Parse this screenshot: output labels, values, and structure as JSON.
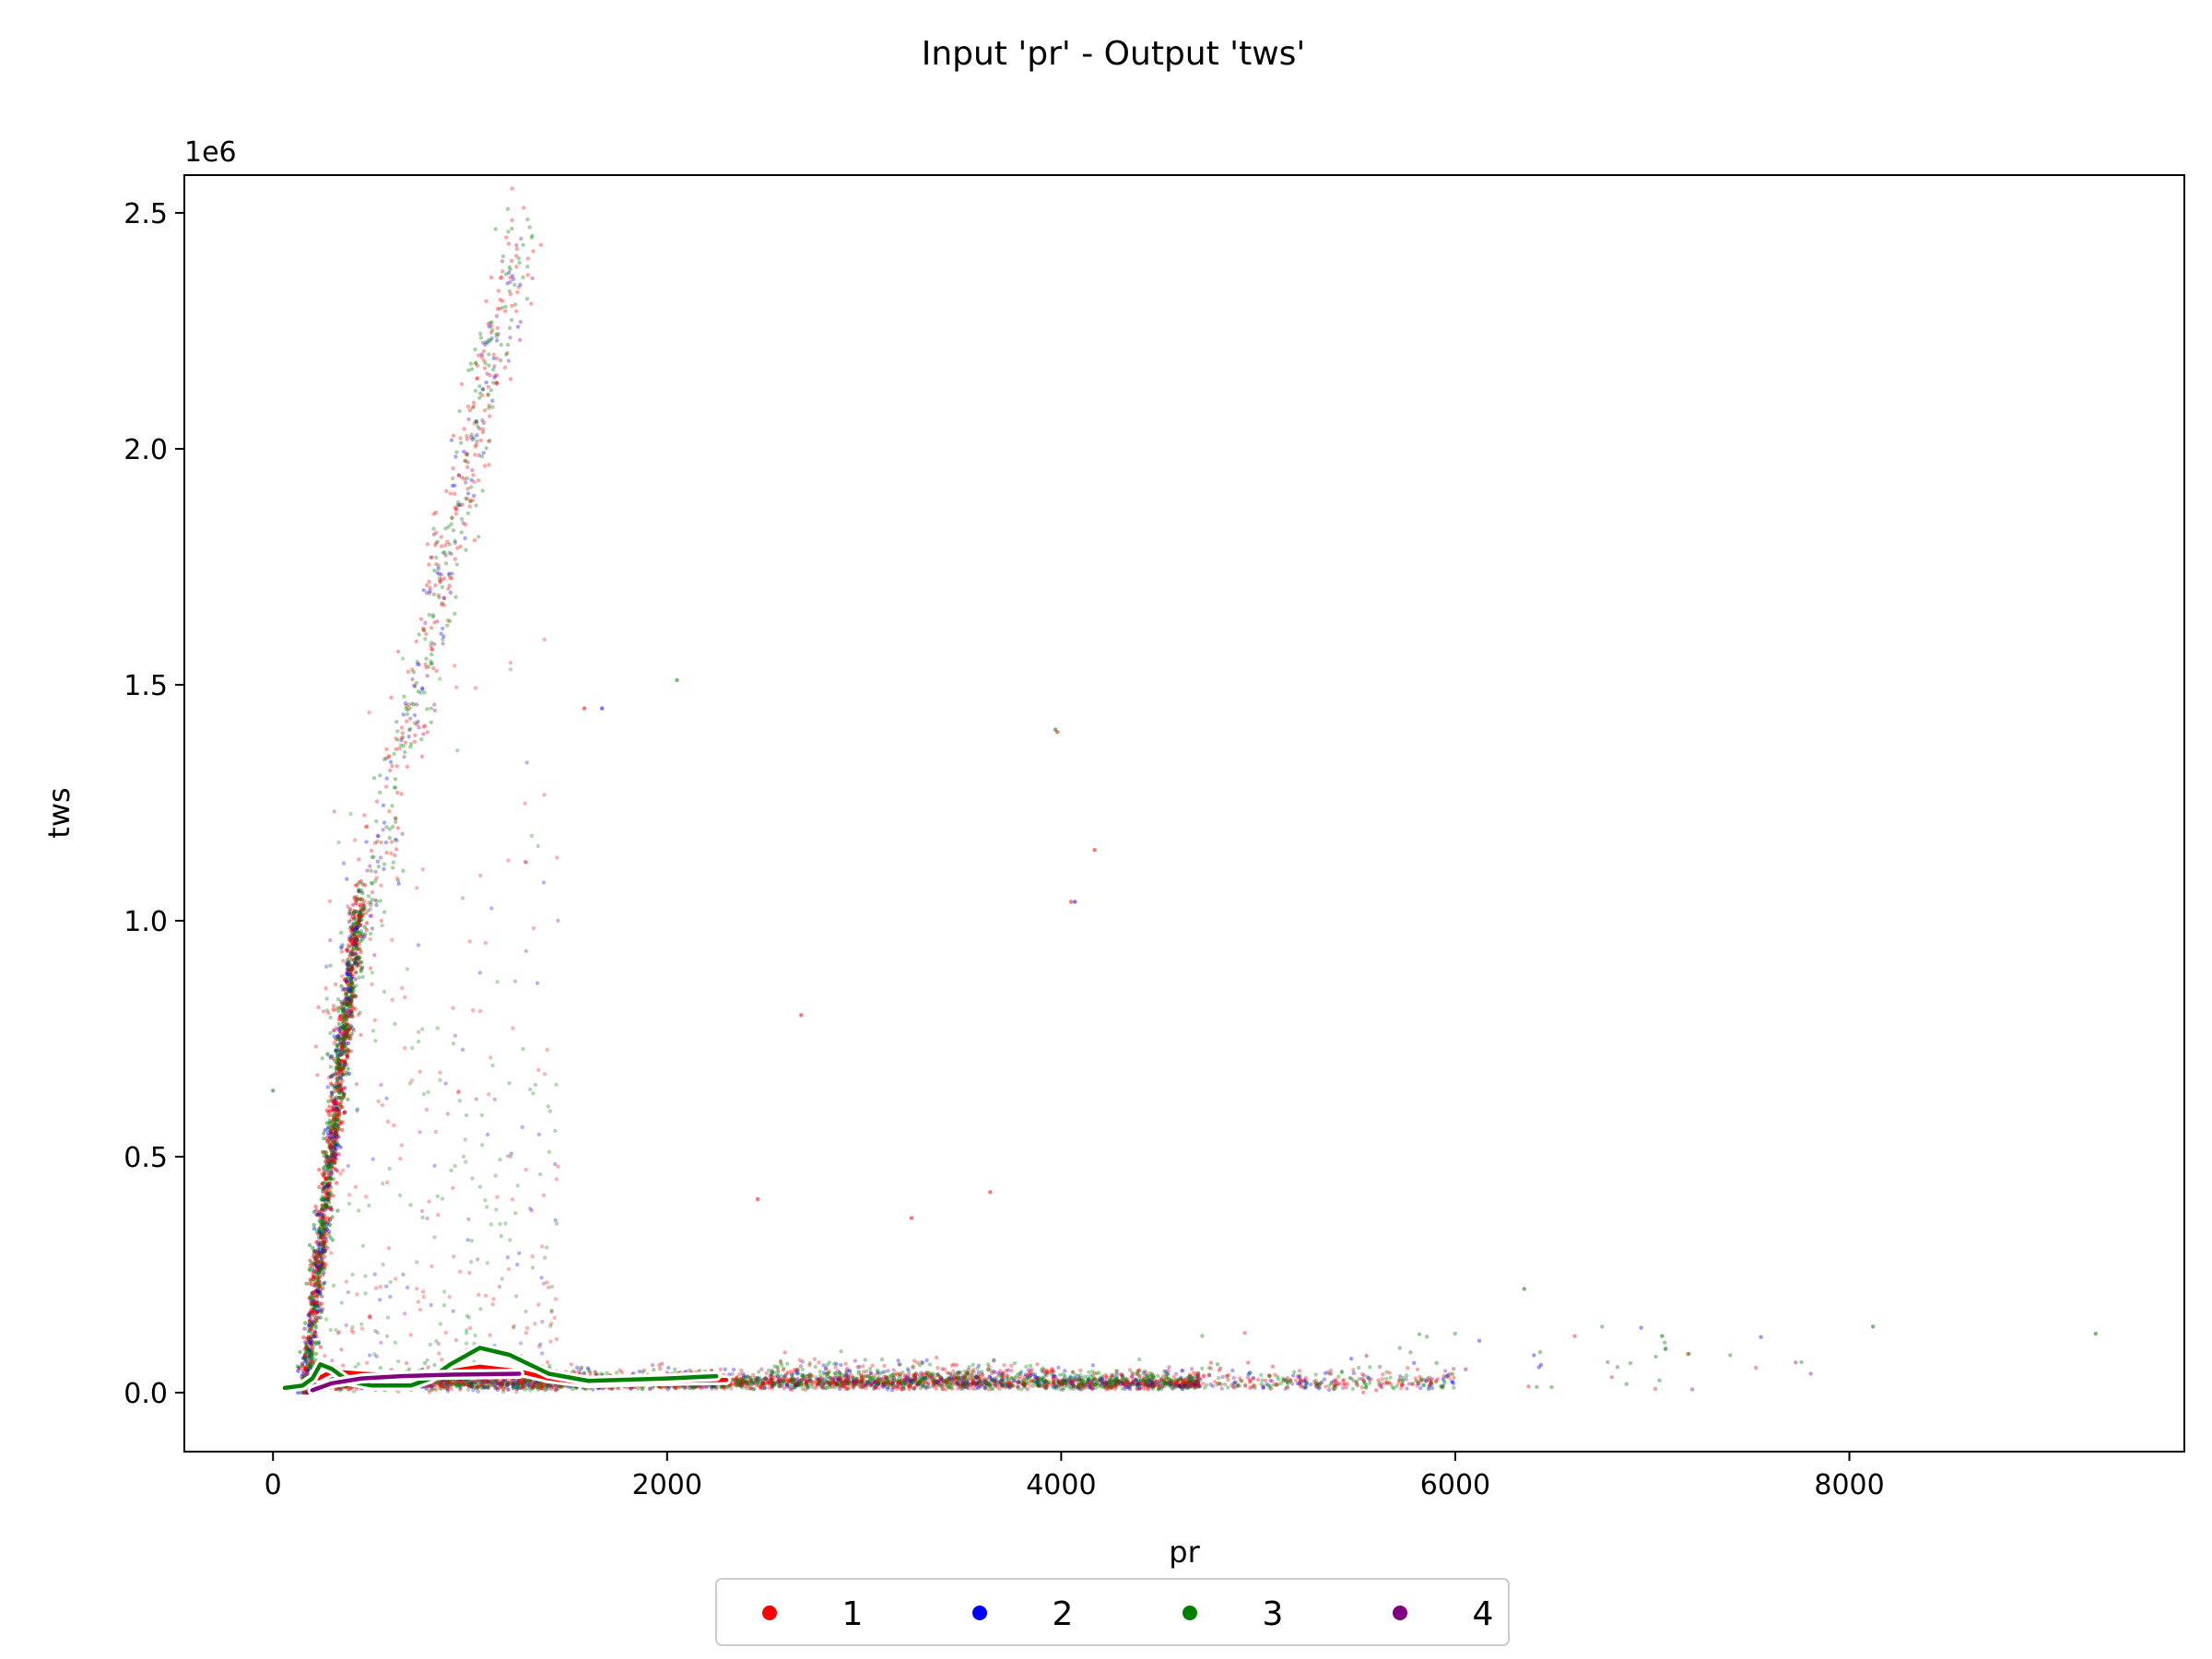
{
  "chart_data": {
    "type": "scatter",
    "title": "Input 'pr' - Output 'tws'",
    "xlabel": "pr",
    "ylabel": "tws",
    "y_offset_label": "1e6",
    "xlim": [
      -450,
      9700
    ],
    "ylim": [
      -125000,
      2580000
    ],
    "x_ticks": [
      0,
      2000,
      4000,
      6000,
      8000
    ],
    "x_tick_labels": [
      "0",
      "2000",
      "4000",
      "6000",
      "8000"
    ],
    "y_ticks": [
      0,
      500000,
      1000000,
      1500000,
      2000000,
      2500000
    ],
    "y_tick_labels": [
      "0.0",
      "0.5",
      "1.0",
      "1.5",
      "2.0",
      "2.5"
    ],
    "grid": false,
    "legend_position": "bottom-center",
    "series": [
      {
        "name": "1",
        "color": "#ff0000",
        "outliers": [
          [
            1580,
            1450000
          ],
          [
            3980,
            1400000
          ],
          [
            4050,
            1040000
          ],
          [
            4170,
            1150000
          ],
          [
            2680,
            800000
          ],
          [
            3640,
            425000
          ],
          [
            2460,
            410000
          ],
          [
            3240,
            370000
          ]
        ],
        "contour": [
          [
            230,
            30000
          ],
          [
            300,
            45000
          ],
          [
            450,
            40000
          ],
          [
            700,
            35000
          ],
          [
            900,
            45000
          ],
          [
            1050,
            55000
          ],
          [
            1250,
            45000
          ],
          [
            1400,
            30000
          ],
          [
            1600,
            20000
          ],
          [
            1900,
            24000
          ],
          [
            2300,
            27000
          ]
        ]
      },
      {
        "name": "2",
        "color": "#0000ff",
        "outliers": [
          [
            1670,
            1450000
          ],
          [
            4070,
            1040000
          ]
        ],
        "contour": []
      },
      {
        "name": "3",
        "color": "#008000",
        "outliers": [
          [
            2050,
            1510000
          ],
          [
            3970,
            1405000
          ],
          [
            6350,
            220000
          ],
          [
            7050,
            120000
          ],
          [
            8120,
            140000
          ],
          [
            9250,
            125000
          ],
          [
            0,
            640000
          ]
        ],
        "contour": [
          [
            60,
            10000
          ],
          [
            150,
            15000
          ],
          [
            200,
            30000
          ],
          [
            240,
            60000
          ],
          [
            300,
            50000
          ],
          [
            380,
            25000
          ],
          [
            500,
            15000
          ],
          [
            700,
            15000
          ],
          [
            800,
            30000
          ],
          [
            900,
            60000
          ],
          [
            1050,
            95000
          ],
          [
            1200,
            80000
          ],
          [
            1400,
            40000
          ],
          [
            1600,
            25000
          ],
          [
            2000,
            30000
          ],
          [
            2250,
            35000
          ]
        ]
      },
      {
        "name": "4",
        "color": "#800080",
        "outliers": [],
        "contour": [
          [
            200,
            5000
          ],
          [
            300,
            20000
          ],
          [
            450,
            30000
          ],
          [
            650,
            35000
          ],
          [
            900,
            38000
          ],
          [
            1250,
            40000
          ]
        ]
      }
    ]
  },
  "legend": {
    "items": [
      {
        "label": "1",
        "color": "#ff0000"
      },
      {
        "label": "2",
        "color": "#0000ff"
      },
      {
        "label": "3",
        "color": "#008000"
      },
      {
        "label": "4",
        "color": "#800080"
      }
    ]
  }
}
